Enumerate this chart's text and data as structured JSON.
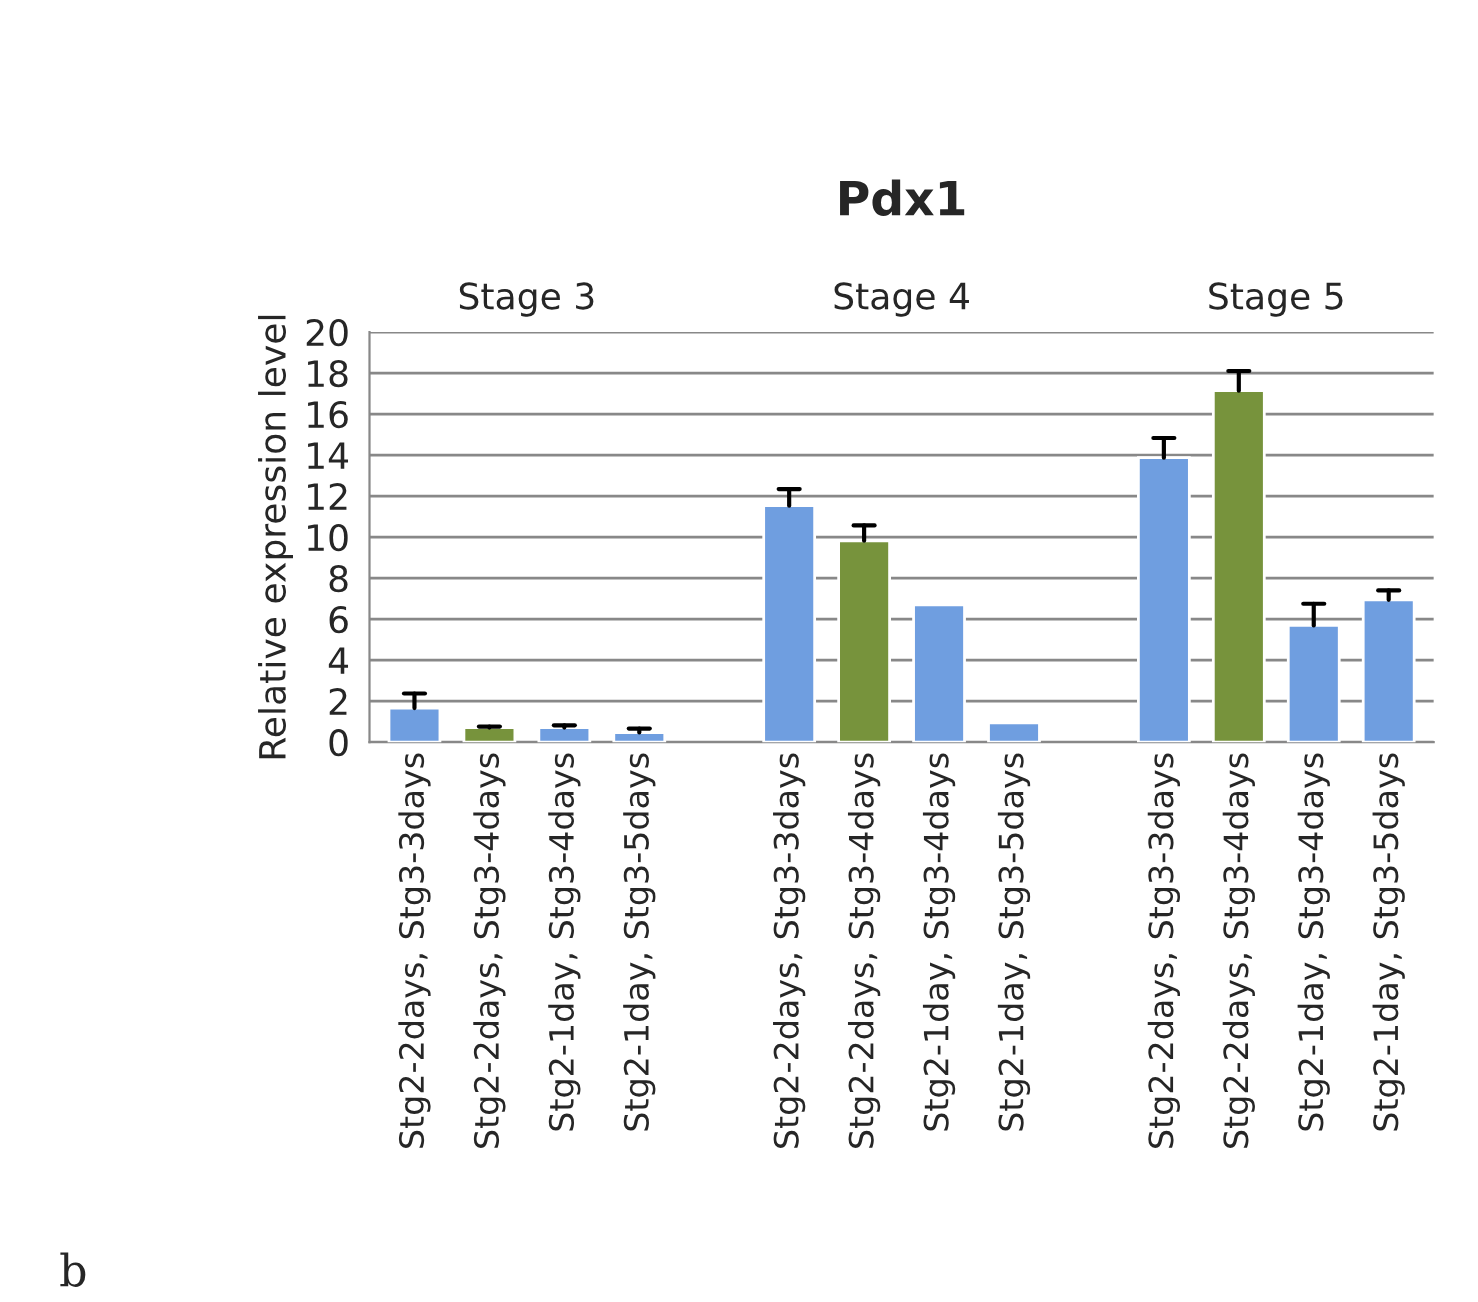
{
  "chart_data": {
    "type": "bar",
    "title": "Pdx1",
    "ylabel": "Relative expression level",
    "categories": [
      "Stg2-2days, Stg3-3days",
      "Stg2-2days, Stg3-4days",
      "Stg2-1day, Stg3-4days",
      "Stg2-1day, Stg3-5days",
      null,
      "Stg2-2days, Stg3-3days",
      "Stg2-2days, Stg3-4days",
      "Stg2-1day, Stg3-4days",
      "Stg2-1day, Stg3-5days",
      null,
      "Stg2-2days, Stg3-3days",
      "Stg2-2days, Stg3-4days",
      "Stg2-1day, Stg3-4days",
      "Stg2-1day, Stg3-5days"
    ],
    "values": [
      1.66,
      0.71,
      0.71,
      0.47,
      null,
      11.53,
      9.82,
      6.7,
      0.94,
      null,
      13.87,
      17.14,
      5.69,
      6.94
    ],
    "errors": [
      [
        1.66,
        2.37
      ],
      [
        0.71,
        0.76
      ],
      [
        0.71,
        0.82
      ],
      [
        0.47,
        0.66
      ],
      null,
      [
        11.53,
        12.34
      ],
      [
        9.82,
        10.57
      ],
      null,
      null,
      null,
      [
        13.87,
        14.83
      ],
      [
        17.14,
        18.1
      ],
      [
        5.69,
        6.75
      ],
      [
        6.94,
        7.4
      ]
    ],
    "colors": [
      "#6f9ee0",
      "#77933c",
      "#6f9ee0",
      "#6f9ee0",
      "#6f9ee0",
      "#6f9ee0",
      "#77933c",
      "#6f9ee0",
      "#6f9ee0",
      "#6f9ee0",
      "#6f9ee0",
      "#77933c",
      "#6f9ee0",
      "#6f9ee0"
    ],
    "annotations": [
      "Stage 3",
      "Stage 4",
      "Stage 5",
      "b"
    ],
    "ylim": [
      0,
      20
    ],
    "yticks": [
      0,
      2,
      4,
      6,
      8,
      10,
      12,
      14,
      16,
      18,
      20
    ],
    "grid": "y",
    "legend": false
  }
}
